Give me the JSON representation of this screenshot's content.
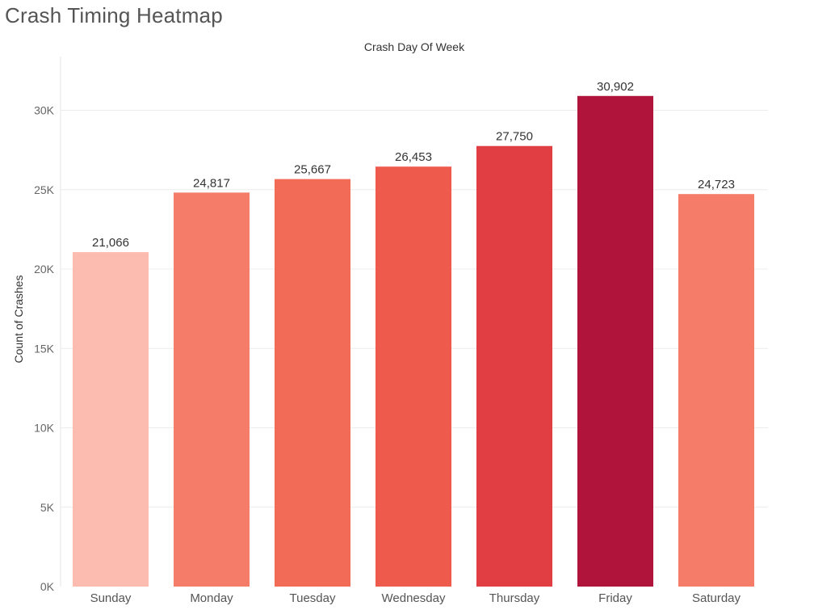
{
  "sheet": {
    "title": "Crash Timing Heatmap"
  },
  "chart_data": {
    "type": "bar",
    "title": "Crash Day Of Week",
    "xlabel": "",
    "ylabel": "Count of Crashes",
    "categories": [
      "Sunday",
      "Monday",
      "Tuesday",
      "Wednesday",
      "Thursday",
      "Friday",
      "Saturday"
    ],
    "values": [
      21066,
      24817,
      25667,
      26453,
      27750,
      30902,
      24723
    ],
    "value_labels": [
      "21,066",
      "24,817",
      "25,667",
      "26,453",
      "27,750",
      "30,902",
      "24,723"
    ],
    "colors": [
      "#fdbcb0",
      "#f57c68",
      "#f26b57",
      "#ee5a4c",
      "#e13e44",
      "#b0143a",
      "#f57c68"
    ],
    "ylim": [
      0,
      33000
    ],
    "yticks": [
      0,
      5000,
      10000,
      15000,
      20000,
      25000,
      30000
    ],
    "ytick_labels": [
      "0K",
      "5K",
      "10K",
      "15K",
      "20K",
      "25K",
      "30K"
    ],
    "grid": true,
    "legend": "none"
  }
}
